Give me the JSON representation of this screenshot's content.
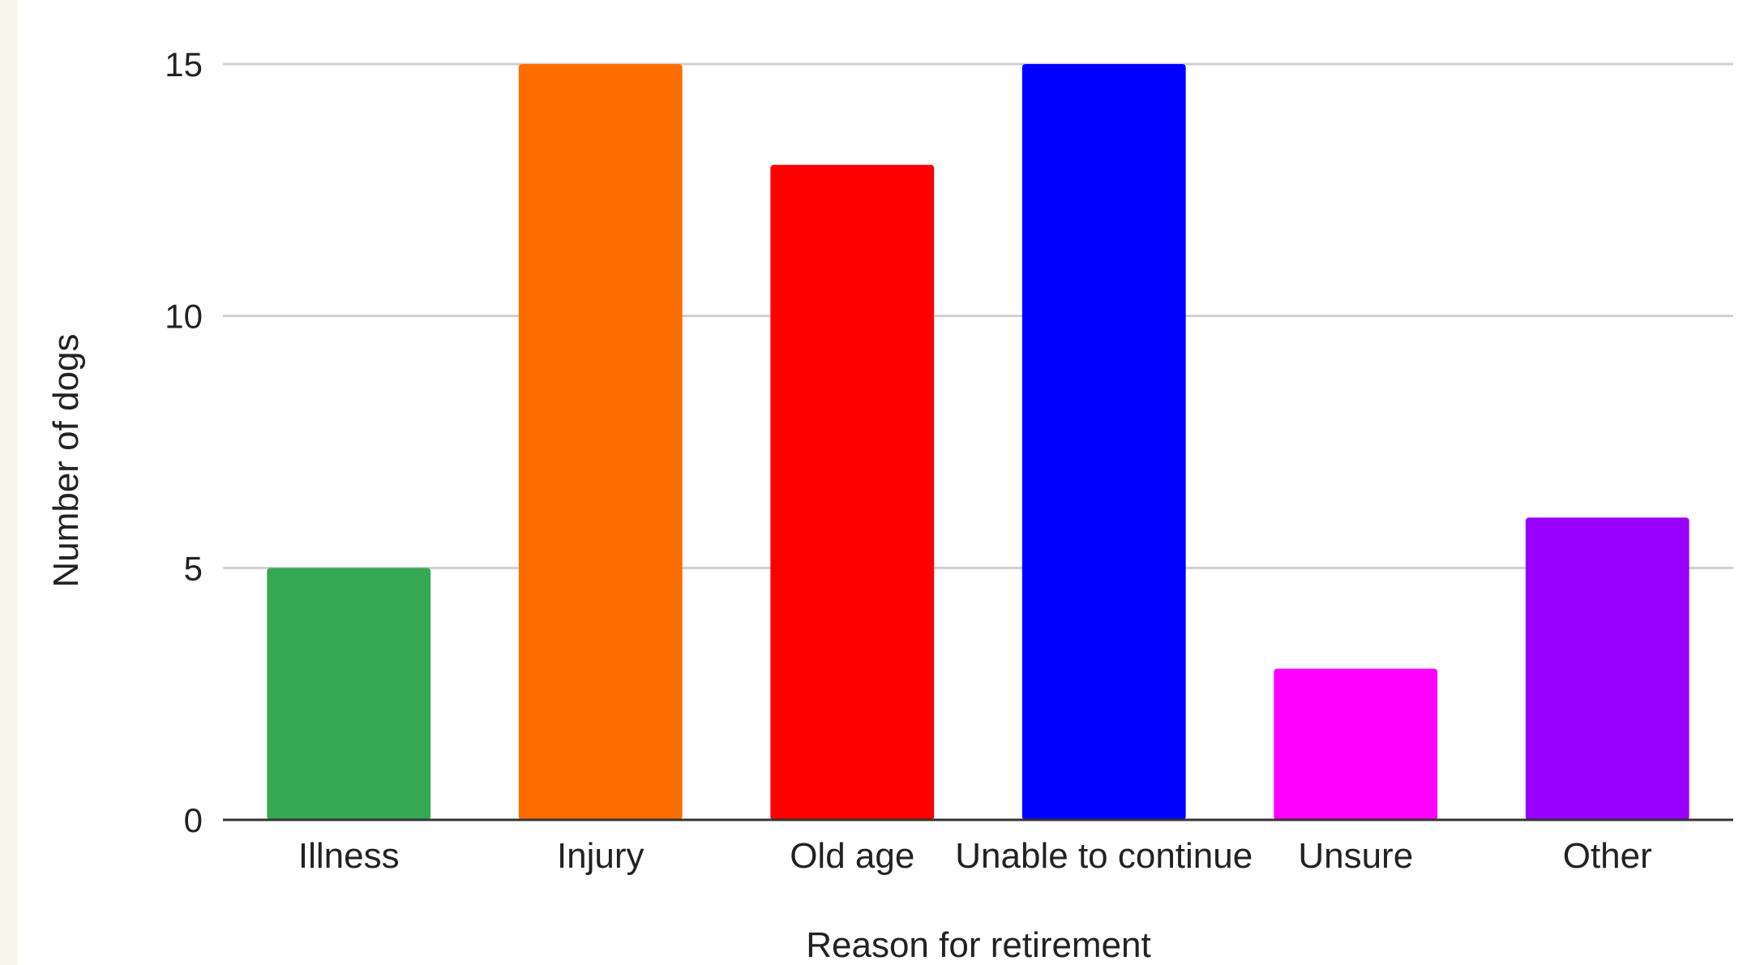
{
  "chart_data": {
    "type": "bar",
    "title": "",
    "xlabel": "Reason for retirement",
    "ylabel": "Number of dogs",
    "categories": [
      "Illness",
      "Injury",
      "Old age",
      "Unable to continue",
      "Unsure",
      "Other"
    ],
    "values": [
      5,
      15,
      13,
      15,
      3,
      6
    ],
    "colors": [
      "#34a853",
      "#ff6d01",
      "#ff0000",
      "#0000ff",
      "#ff00ff",
      "#9900ff"
    ],
    "ylim": [
      0,
      15
    ],
    "yticks": [
      "0",
      "5",
      "10",
      "15"
    ],
    "grid": true,
    "legend": "none"
  }
}
